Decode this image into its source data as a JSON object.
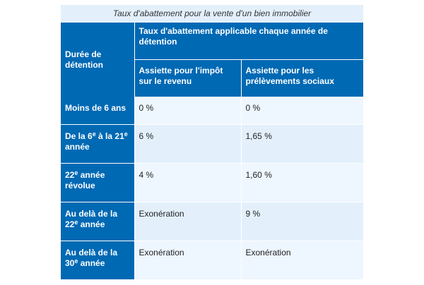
{
  "table": {
    "caption": "Taux d'abattement pour la vente d'un bien immobilier",
    "header": {
      "col1": "Durée de détention",
      "group": "Taux d'abattement applicable chaque année de détention",
      "sub1": "Assiette pour l'impôt sur le revenu",
      "sub2": "Assiette pour les prélèvements sociaux"
    },
    "rows": [
      {
        "label_parts": [
          "Moins de 6 ans"
        ],
        "income_tax": "0 %",
        "social": "0 %"
      },
      {
        "label_parts": [
          "De la 6",
          "e",
          " à la 21",
          "e",
          " année"
        ],
        "income_tax": "6 %",
        "social": "1,65 %"
      },
      {
        "label_parts": [
          "22",
          "e",
          " année révolue"
        ],
        "income_tax": "4 %",
        "social": "1,60 %"
      },
      {
        "label_parts": [
          "Au delà de la 22",
          "e",
          " année"
        ],
        "income_tax": "Exonération",
        "social": "9 %"
      },
      {
        "label_parts": [
          "Au delà de la 30",
          "e",
          " année"
        ],
        "income_tax": "Exonération",
        "social": "Exonération"
      }
    ]
  },
  "colors": {
    "header_blue": "#0069b4",
    "caption_bg": "#e3f0fc",
    "row_odd_bg": "#eef6ff",
    "row_even_bg": "#e3f0fc"
  }
}
